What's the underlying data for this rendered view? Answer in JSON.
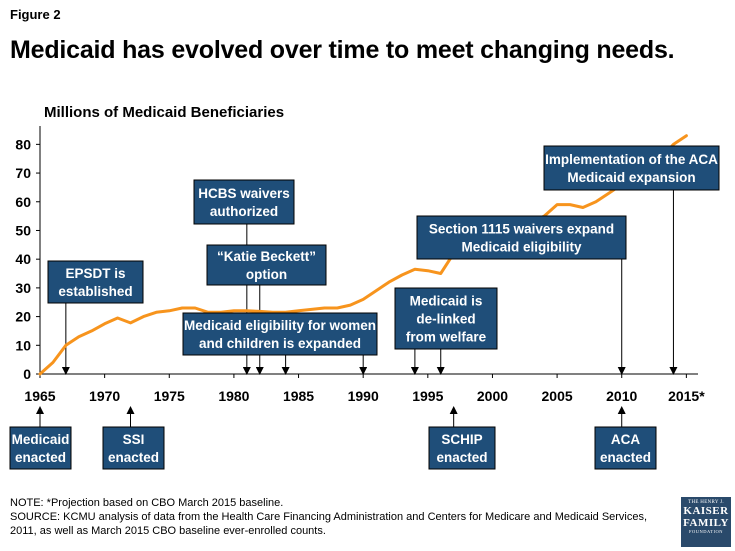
{
  "header": {
    "figure_label": "Figure 2",
    "title": "Medicaid  has evolved over time to meet changing needs."
  },
  "colors": {
    "box_fill": "#1f4e79",
    "line": "#f7941d",
    "axis": "#000000"
  },
  "chart_data": {
    "type": "line",
    "title": "Medicaid  has evolved over time to meet changing needs.",
    "ylabel": "Millions of Medicaid Beneficiaries",
    "xlabel": "",
    "xlim": [
      1965,
      2015.9
    ],
    "ylim": [
      0,
      85
    ],
    "yticks": [
      0,
      10,
      20,
      30,
      40,
      50,
      60,
      70,
      80
    ],
    "xticks": [
      {
        "value": 1965,
        "label": "1965"
      },
      {
        "value": 1970,
        "label": "1970"
      },
      {
        "value": 1975,
        "label": "1975"
      },
      {
        "value": 1980,
        "label": "1980"
      },
      {
        "value": 1985,
        "label": "1985"
      },
      {
        "value": 1990,
        "label": "1990"
      },
      {
        "value": 1995,
        "label": "1995"
      },
      {
        "value": 2000,
        "label": "2000"
      },
      {
        "value": 2005,
        "label": "2005"
      },
      {
        "value": 2010,
        "label": "2010"
      },
      {
        "value": 2015,
        "label": "2015*"
      }
    ],
    "series": [
      {
        "name": "Medicaid beneficiaries (millions)",
        "x": [
          1966,
          1967,
          1968,
          1969,
          1970,
          1971,
          1972,
          1973,
          1974,
          1975,
          1976,
          1977,
          1978,
          1979,
          1980,
          1981,
          1982,
          1983,
          1984,
          1985,
          1986,
          1987,
          1988,
          1989,
          1990,
          1991,
          1992,
          1993,
          1994,
          1995,
          1996,
          1997,
          1998,
          1999,
          2000,
          2001,
          2002,
          2003,
          2004,
          2005,
          2006,
          2007,
          2008,
          2009,
          2010,
          2011,
          2012,
          2013,
          2014,
          2015
        ],
        "y": [
          4,
          10,
          13,
          15,
          17.5,
          19.5,
          17.8,
          20,
          21.5,
          22,
          23,
          23,
          21.5,
          21.5,
          22,
          22,
          21.8,
          21.5,
          21.5,
          22,
          22.5,
          23,
          23,
          24,
          26,
          29,
          32,
          34.5,
          36.5,
          36,
          35,
          42,
          43,
          44,
          46,
          48,
          50,
          53,
          55,
          59,
          59,
          58,
          60,
          63,
          66,
          69,
          72,
          75,
          80,
          83
        ]
      }
    ],
    "annotations": {
      "above_axis": [
        {
          "lines": [
            "EPSDT is",
            "established"
          ],
          "x": 1967,
          "label_year": 1967
        },
        {
          "lines": [
            "HCBS waivers",
            "authorized"
          ],
          "x": 1981
        },
        {
          "lines": [
            "“Katie Beckett”",
            "option"
          ],
          "x": 1982
        },
        {
          "lines": [
            "Medicaid eligibility for women",
            "and children is expanded"
          ],
          "x": [
            1984,
            1990
          ]
        },
        {
          "lines": [
            "Medicaid is",
            "de-linked",
            "from welfare"
          ],
          "x": [
            1994,
            1996
          ]
        },
        {
          "lines": [
            "Section 1115 waivers expand",
            "Medicaid eligibility"
          ],
          "x": 2010
        },
        {
          "lines": [
            "Implementation of the ACA",
            "Medicaid expansion"
          ],
          "x": 2014
        }
      ],
      "below_axis": [
        {
          "lines": [
            "Medicaid",
            "enacted"
          ],
          "x": 1965
        },
        {
          "lines": [
            "SSI",
            "enacted"
          ],
          "x": 1972
        },
        {
          "lines": [
            "SCHIP",
            "enacted"
          ],
          "x": 1997
        },
        {
          "lines": [
            "ACA",
            "enacted"
          ],
          "x": 2010
        }
      ]
    }
  },
  "footer": {
    "note": "NOTE: *Projection based on CBO March 2015 baseline.",
    "source_line1": "SOURCE: KCMU analysis of data from the Health Care Financing Administration and Centers for Medicare and Medicaid Services,",
    "source_line2": "2011, as well as March 2015 CBO baseline ever-enrolled counts."
  },
  "logo": {
    "line1": "THE HENRY J.",
    "line2": "KAISER",
    "line3": "FAMILY",
    "line4": "FOUNDATION"
  }
}
